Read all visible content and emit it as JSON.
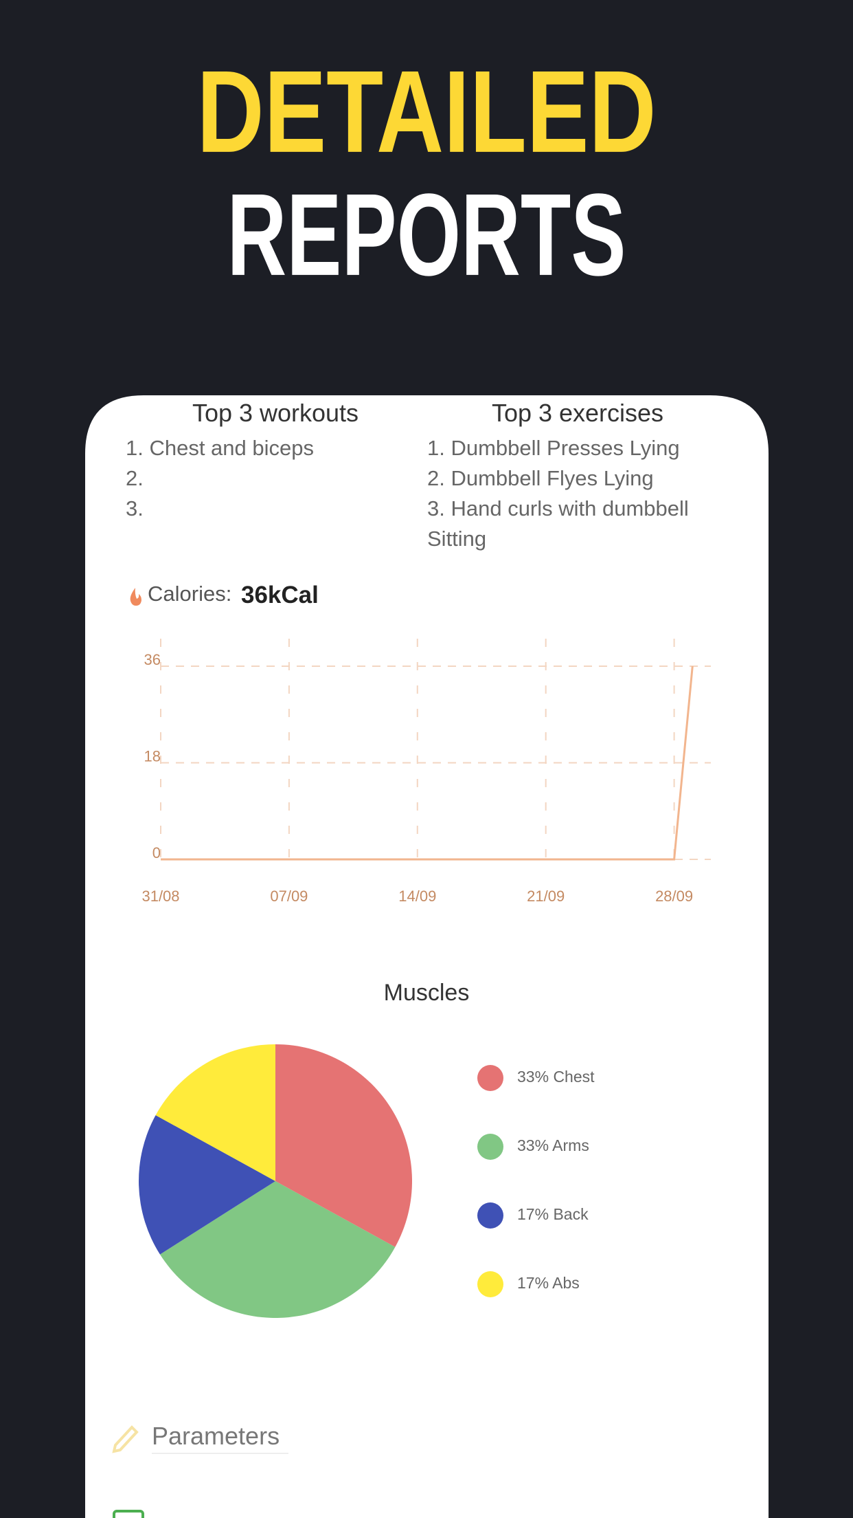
{
  "header": {
    "line1": "DETAILED",
    "line2": "REPORTS"
  },
  "top_workouts": {
    "title": "Top 3 workouts",
    "items": [
      "1. Chest and biceps",
      "2.",
      "3."
    ]
  },
  "top_exercises": {
    "title": "Top 3 exercises",
    "items": [
      "1. Dumbbell Presses Lying",
      "2. Dumbbell Flyes Lying",
      "3. Hand curls with dumbbell Sitting"
    ]
  },
  "calories": {
    "label": "Calories:",
    "value": "36kCal"
  },
  "chart_data": [
    {
      "type": "line",
      "x": [
        "31/08",
        "28/09",
        "29/09"
      ],
      "values": [
        0,
        0,
        36
      ],
      "color": "#f2b58e",
      "xlim": [
        "31/08",
        "30/09"
      ],
      "xticks": [
        "31/08",
        "07/09",
        "14/09",
        "21/09",
        "28/09"
      ],
      "ylim": [
        0,
        36
      ],
      "yticks": [
        0,
        18,
        36
      ],
      "grid": true
    },
    {
      "type": "pie",
      "title": "Muscles",
      "categories": [
        "Chest",
        "Arms",
        "Back",
        "Abs"
      ],
      "values": [
        33,
        33,
        17,
        17
      ],
      "value_labels": [
        "33%",
        "33%",
        "17%",
        "17%"
      ],
      "colors": [
        "#e57373",
        "#81c784",
        "#3f51b5",
        "#ffeb3b"
      ]
    }
  ],
  "parameters": {
    "title": "Parameters"
  }
}
